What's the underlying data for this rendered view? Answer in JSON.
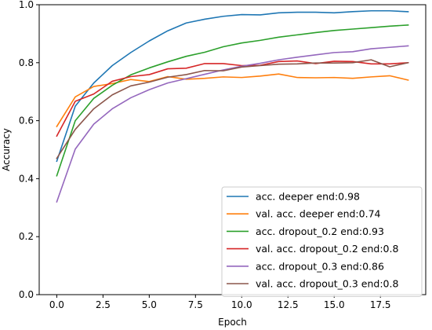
{
  "chart_data": {
    "type": "line",
    "xlabel": "Epoch",
    "ylabel": "Accuracy",
    "xlim": [
      -0.95,
      19.95
    ],
    "ylim": [
      0,
      1.0
    ],
    "x": [
      0,
      1,
      2,
      3,
      4,
      5,
      6,
      7,
      8,
      9,
      10,
      11,
      12,
      13,
      14,
      15,
      16,
      17,
      18,
      19
    ],
    "x_ticks": [
      {
        "value": 0,
        "label": "0.0"
      },
      {
        "value": 2.5,
        "label": "2.5"
      },
      {
        "value": 5,
        "label": "5.0"
      },
      {
        "value": 7.5,
        "label": "7.5"
      },
      {
        "value": 10,
        "label": "10.0"
      },
      {
        "value": 12.5,
        "label": "12.5"
      },
      {
        "value": 15,
        "label": "15.0"
      },
      {
        "value": 17.5,
        "label": "17.5"
      }
    ],
    "y_ticks": [
      {
        "value": 0,
        "label": "0.0"
      },
      {
        "value": 0.2,
        "label": "0.2"
      },
      {
        "value": 0.4,
        "label": "0.4"
      },
      {
        "value": 0.6,
        "label": "0.6"
      },
      {
        "value": 0.8,
        "label": "0.8"
      },
      {
        "value": 1.0,
        "label": "1.0"
      }
    ],
    "grid": false,
    "legend_position": "lower-right",
    "series": [
      {
        "name": "acc. deeper  end:0.98",
        "color": "#1f77b4",
        "values": [
          0.46,
          0.65,
          0.73,
          0.79,
          0.835,
          0.875,
          0.91,
          0.937,
          0.95,
          0.96,
          0.966,
          0.965,
          0.972,
          0.974,
          0.974,
          0.972,
          0.976,
          0.979,
          0.979,
          0.976
        ]
      },
      {
        "name": "val. acc. deeper  end:0.74",
        "color": "#ff7f0e",
        "values": [
          0.58,
          0.682,
          0.718,
          0.728,
          0.742,
          0.735,
          0.752,
          0.743,
          0.746,
          0.751,
          0.749,
          0.754,
          0.761,
          0.749,
          0.748,
          0.749,
          0.746,
          0.751,
          0.755,
          0.74
        ]
      },
      {
        "name": "acc. dropout_0.2  end:0.93",
        "color": "#2ca02c",
        "values": [
          0.41,
          0.6,
          0.677,
          0.722,
          0.758,
          0.782,
          0.803,
          0.822,
          0.836,
          0.855,
          0.868,
          0.877,
          0.888,
          0.896,
          0.904,
          0.911,
          0.916,
          0.921,
          0.926,
          0.93
        ]
      },
      {
        "name": "val. acc. dropout_0.2  end:0.8",
        "color": "#d62728",
        "values": [
          0.547,
          0.667,
          0.692,
          0.736,
          0.752,
          0.759,
          0.779,
          0.781,
          0.797,
          0.797,
          0.79,
          0.791,
          0.804,
          0.806,
          0.797,
          0.805,
          0.804,
          0.796,
          0.796,
          0.8
        ]
      },
      {
        "name": "acc. dropout_0.3  end:0.86",
        "color": "#9467bd",
        "values": [
          0.32,
          0.502,
          0.588,
          0.641,
          0.679,
          0.707,
          0.73,
          0.745,
          0.76,
          0.775,
          0.788,
          0.798,
          0.81,
          0.819,
          0.827,
          0.835,
          0.838,
          0.848,
          0.853,
          0.858
        ]
      },
      {
        "name": "val. acc. dropout_0.3  end:0.8",
        "color": "#8c564b",
        "values": [
          0.47,
          0.57,
          0.641,
          0.689,
          0.72,
          0.733,
          0.75,
          0.759,
          0.773,
          0.772,
          0.785,
          0.79,
          0.795,
          0.796,
          0.799,
          0.799,
          0.8,
          0.81,
          0.786,
          0.8
        ]
      }
    ]
  }
}
